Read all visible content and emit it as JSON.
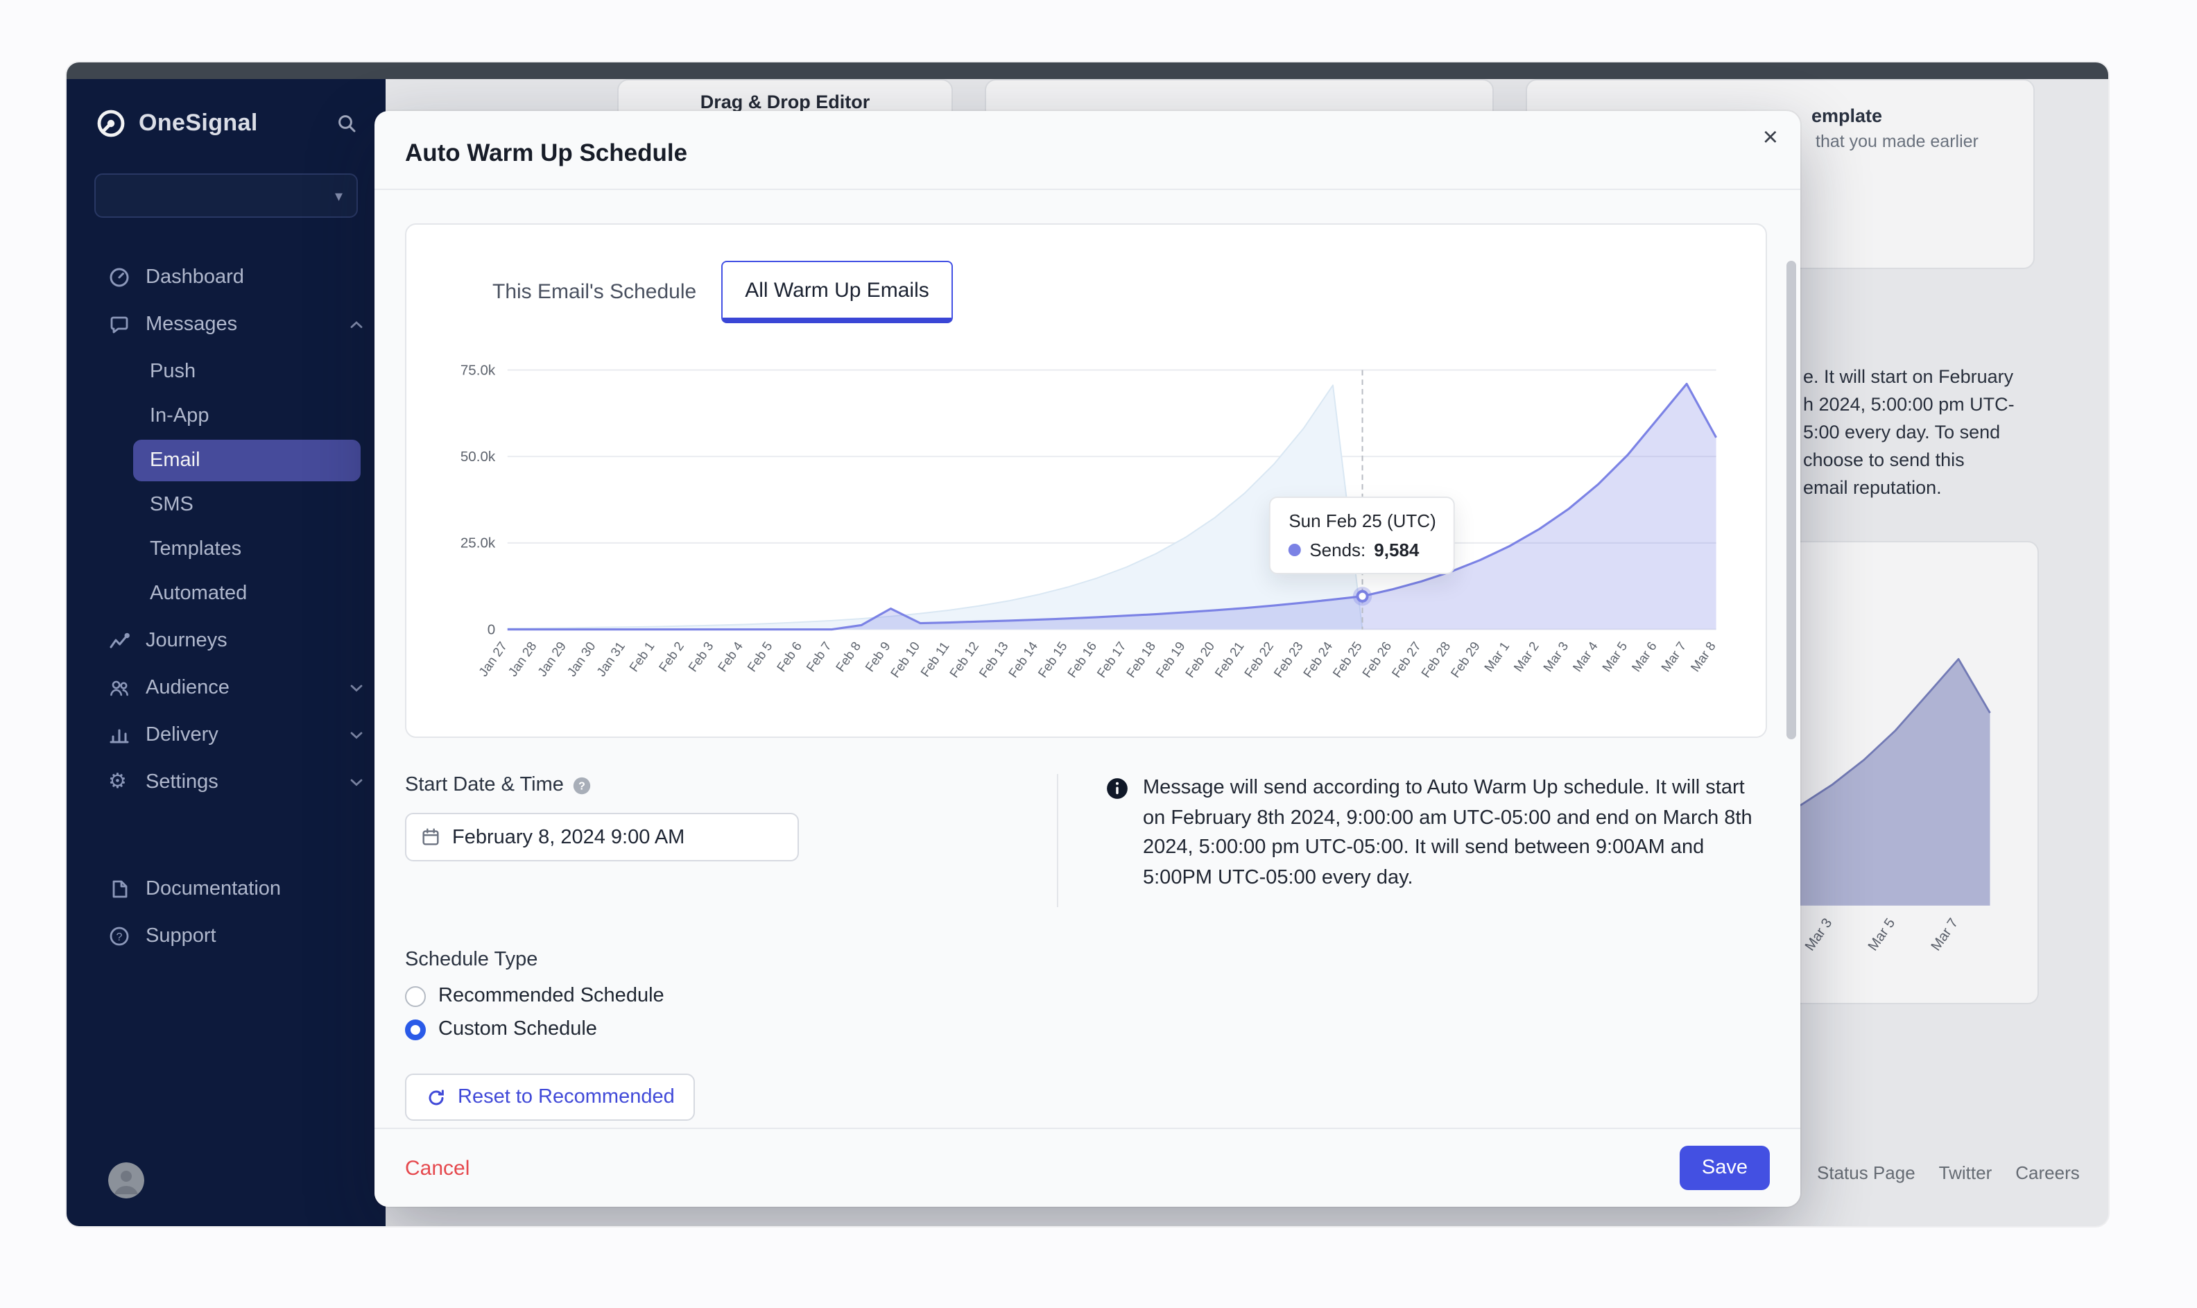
{
  "sidebar": {
    "brand": "OneSignal",
    "selector_value": "",
    "items": [
      {
        "label": "Dashboard"
      },
      {
        "label": "Messages"
      },
      {
        "label": "Journeys"
      },
      {
        "label": "Audience"
      },
      {
        "label": "Delivery"
      },
      {
        "label": "Settings"
      }
    ],
    "messages_children": [
      {
        "label": "Push"
      },
      {
        "label": "In-App"
      },
      {
        "label": "Email",
        "active": true
      },
      {
        "label": "SMS"
      },
      {
        "label": "Templates"
      },
      {
        "label": "Automated"
      }
    ],
    "footer_items": [
      {
        "label": "Documentation"
      },
      {
        "label": "Support"
      }
    ]
  },
  "background": {
    "editor_card_title": "Drag & Drop Editor",
    "template_fragment_1": "emplate",
    "template_fragment_2": "that you made earlier",
    "paragraph_fragments": [
      "e. It will start on February",
      "h 2024, 5:00:00 pm UTC-",
      "5:00 every day. To send",
      "choose to send this",
      "email reputation."
    ],
    "footer_links": [
      "Status Page",
      "Twitter",
      "Careers"
    ]
  },
  "modal": {
    "title": "Auto Warm Up Schedule",
    "close": "×",
    "tabs": [
      {
        "label": "This Email's Schedule",
        "active": false
      },
      {
        "label": "All Warm Up Emails",
        "active": true
      }
    ],
    "start_date_label": "Start Date & Time",
    "start_date_value": "February 8, 2024 9:00 AM",
    "info_text": "Message will send according to Auto Warm Up schedule. It will start on February 8th 2024, 9:00:00 am UTC-05:00 and end on March 8th 2024, 5:00:00 pm UTC-05:00. It will send between 9:00AM and 5:00PM UTC-05:00 every day.",
    "schedule_type_label": "Schedule Type",
    "radio_options": [
      {
        "label": "Recommended Schedule",
        "selected": false
      },
      {
        "label": "Custom Schedule",
        "selected": true
      }
    ],
    "reset_button": "Reset to Recommended",
    "cancel": "Cancel",
    "save": "Save"
  },
  "colors": {
    "accent": "#4350e2",
    "sidebar_bg": "#0d1b3e",
    "sidebar_active": "#494fa2",
    "cancel_red": "#e5484d",
    "series_primary": "#7b82e5",
    "series_secondary_fill": "#edf4fb"
  },
  "chart_data": [
    {
      "type": "area",
      "title": "",
      "xlabel": "",
      "ylabel": "",
      "grid": true,
      "legend": "none",
      "ylim": [
        0,
        75000
      ],
      "yticks": [
        {
          "v": 0,
          "label": "0"
        },
        {
          "v": 25000,
          "label": "25.0k"
        },
        {
          "v": 50000,
          "label": "50.0k"
        },
        {
          "v": 75000,
          "label": "75.0k"
        }
      ],
      "x": [
        "Jan 27",
        "Jan 28",
        "Jan 29",
        "Jan 30",
        "Jan 31",
        "Feb 1",
        "Feb 2",
        "Feb 3",
        "Feb 4",
        "Feb 5",
        "Feb 6",
        "Feb 7",
        "Feb 8",
        "Feb 9",
        "Feb 10",
        "Feb 11",
        "Feb 12",
        "Feb 13",
        "Feb 14",
        "Feb 15",
        "Feb 16",
        "Feb 17",
        "Feb 18",
        "Feb 19",
        "Feb 20",
        "Feb 21",
        "Feb 22",
        "Feb 23",
        "Feb 24",
        "Feb 25",
        "Feb 26",
        "Feb 27",
        "Feb 28",
        "Feb 29",
        "Mar 1",
        "Mar 2",
        "Mar 3",
        "Mar 4",
        "Mar 5",
        "Mar 6",
        "Mar 7",
        "Mar 8"
      ],
      "series": [
        {
          "name": "sends_earlier_warmup",
          "color": "#d9e7f3",
          "fill": "#edf4fb",
          "width": 1,
          "values": [
            300,
            365,
            443,
            539,
            655,
            796,
            967,
            1175,
            1428,
            1736,
            2110,
            2564,
            3116,
            3787,
            4603,
            5594,
            6799,
            8263,
            10042,
            12205,
            14833,
            18027,
            21909,
            26627,
            32360,
            39328,
            47797,
            58089,
            70600,
            0,
            null,
            null,
            null,
            null,
            null,
            null,
            null,
            null,
            null,
            null,
            null,
            null
          ]
        },
        {
          "name": "sends",
          "color": "#7b82e5",
          "fill": "rgba(126,132,230,0.28)",
          "width": 1.6,
          "values": [
            0,
            0,
            0,
            0,
            0,
            0,
            0,
            0,
            0,
            0,
            0,
            0,
            1200,
            6000,
            1800,
            2020,
            2260,
            2527,
            2825,
            3159,
            3532,
            3949,
            4415,
            4937,
            5520,
            6172,
            6901,
            7716,
            8627,
            9584,
            11527,
            13863,
            16673,
            20053,
            24118,
            29007,
            34887,
            41958,
            50463,
            60692,
            71000,
            55500
          ]
        }
      ],
      "tooltip": {
        "x": "Feb 25",
        "title": "Sun Feb 25 (UTC)",
        "label": "Sends:",
        "value": "9,584"
      }
    },
    {
      "type": "area",
      "title": "",
      "grid": false,
      "legend": "none",
      "ylim": [
        0,
        75000
      ],
      "x": [
        "Feb 29",
        "Mar 1",
        "Mar 2",
        "Mar 3",
        "Mar 4",
        "Mar 5",
        "Mar 6",
        "Mar 7",
        "Mar 8"
      ],
      "series": [
        {
          "name": "sends",
          "color": "#7880bd",
          "fill": "rgba(114,122,188,0.5)",
          "width": 1.4,
          "values": [
            20053,
            24118,
            29007,
            34887,
            41958,
            50463,
            60692,
            71000,
            55500
          ]
        }
      ]
    }
  ]
}
